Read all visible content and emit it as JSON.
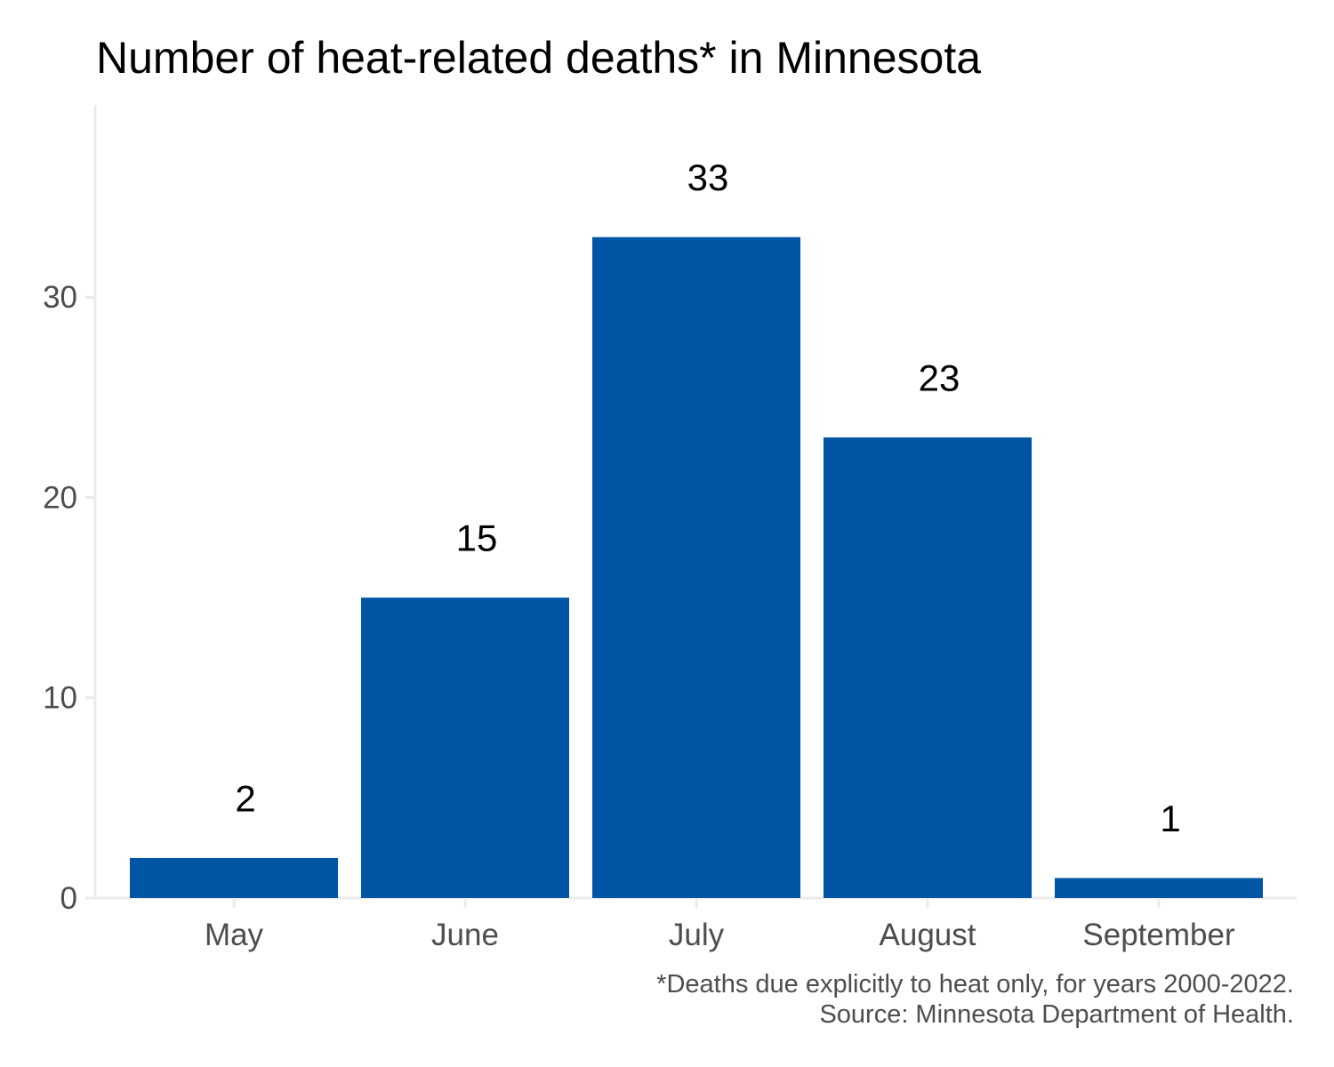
{
  "chart_data": {
    "type": "bar",
    "title": "Number of heat-related deaths* in Minnesota",
    "categories": [
      "May",
      "June",
      "July",
      "August",
      "September"
    ],
    "values": [
      2,
      15,
      33,
      23,
      1
    ],
    "data_labels": [
      "2",
      "15",
      "33",
      "23",
      "1"
    ],
    "xlabel": "",
    "ylabel": "",
    "ylim": [
      0,
      39.6
    ],
    "yticks": [
      0,
      10,
      20,
      30
    ],
    "ytick_labels": [
      "0",
      "10",
      "20",
      "30"
    ],
    "grid": false,
    "legend": "none",
    "bar_color": "#0055a5",
    "axis_color": "#ebebeb",
    "caption": [
      "*Deaths due explicitly to heat only, for years 2000-2022.",
      "Source: Minnesota Department of Health."
    ]
  }
}
